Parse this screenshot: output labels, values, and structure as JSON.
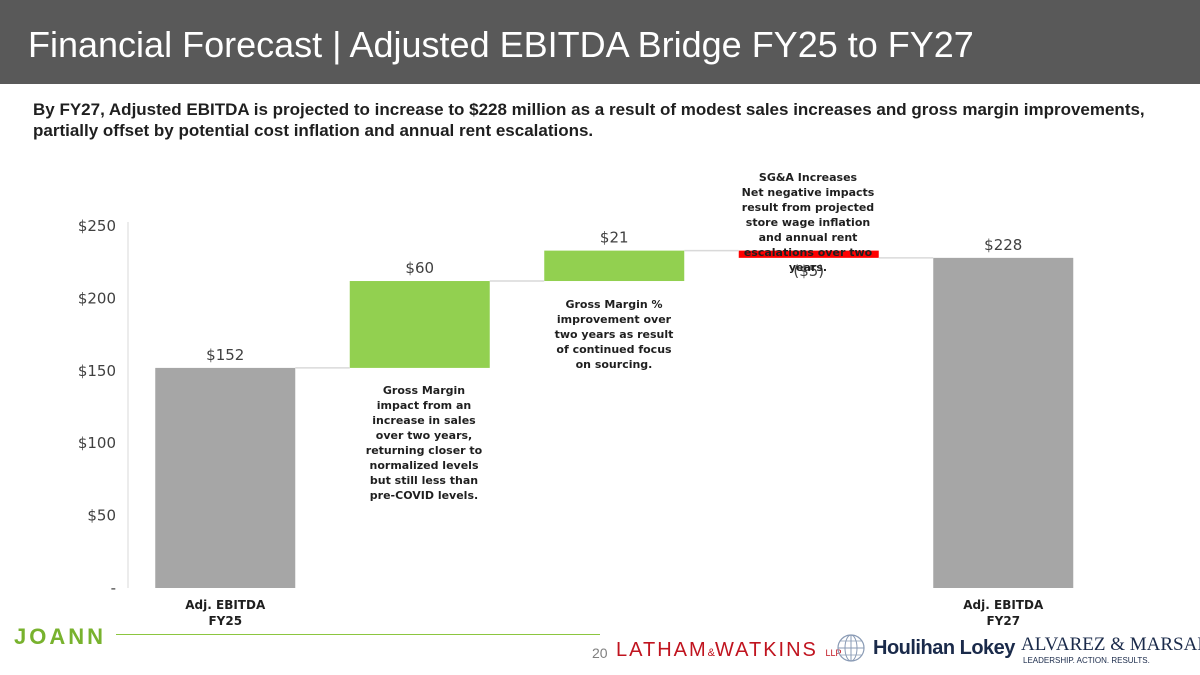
{
  "header": {
    "title": "Financial Forecast | Adjusted EBITDA Bridge FY25 to FY27",
    "subtitle": "By FY27, Adjusted EBITDA is projected to increase to $228 million as a result of modest sales increases and gross margin improvements, partially offset by potential cost inflation and annual rent escalations."
  },
  "colors": {
    "title_bar": "#595959",
    "total_bar": "#a6a6a6",
    "increase_bar": "#92d050",
    "decrease_bar": "#ff0000",
    "connector": "#d9d9d9"
  },
  "chart_data": {
    "type": "waterfall",
    "y_unit": "$M",
    "ylim": [
      0,
      250
    ],
    "y_ticks": [
      {
        "value": 0,
        "label": "-"
      },
      {
        "value": 50,
        "label": "$50"
      },
      {
        "value": 100,
        "label": "$100"
      },
      {
        "value": 150,
        "label": "$150"
      },
      {
        "value": 200,
        "label": "$200"
      },
      {
        "value": 250,
        "label": "$250"
      }
    ],
    "steps": [
      {
        "kind": "total",
        "start": 0,
        "end": 152,
        "label": "$152",
        "category": [
          "Adj. EBITDA",
          "FY25"
        ]
      },
      {
        "kind": "increase",
        "start": 152,
        "end": 212,
        "label": "$60",
        "category": [
          "",
          ""
        ]
      },
      {
        "kind": "increase",
        "start": 212,
        "end": 233,
        "label": "$21",
        "category": [
          "",
          ""
        ]
      },
      {
        "kind": "decrease",
        "start": 233,
        "end": 228,
        "label": "($5)",
        "category": [
          "",
          ""
        ]
      },
      {
        "kind": "total",
        "start": 0,
        "end": 228,
        "label": "$228",
        "category": [
          "Adj. EBITDA",
          "FY27"
        ]
      }
    ]
  },
  "annotations": {
    "gm_impact": "Gross Margin impact from an increase in sales over two years, returning closer to normalized levels but still less than pre-COVID levels.",
    "gm_percent": "Gross Margin % improvement over two years as result of continued focus on sourcing.",
    "sga_title": "SG&A Increases",
    "sga_body": "Net negative impacts result from projected store wage inflation and annual rent escalations over two years."
  },
  "footer": {
    "joann": "JOANN",
    "page_number": "20",
    "latham_left": "LATHAM",
    "latham_amp": "&",
    "latham_right": "WATKINS",
    "latham_llp": "LLP",
    "houlihan": "Houlihan Lokey",
    "alvarez": "ALVAREZ & MARSAL",
    "alvarez_tag": "LEADERSHIP. ACTION. RESULTS."
  }
}
